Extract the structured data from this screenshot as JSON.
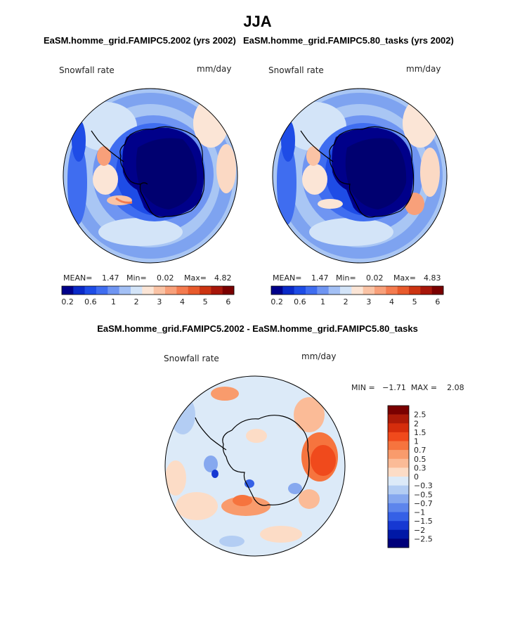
{
  "figure": {
    "season": "JJA",
    "panel1_title": "EaSM.homme_grid.FAMIPC5.2002 (yrs 2002)",
    "panel2_title": "EaSM.homme_grid.FAMIPC5.80_tasks (yrs 2002)",
    "diff_title": "EaSM.homme_grid.FAMIPC5.2002 - EaSM.homme_grid.FAMIPC5.80_tasks"
  },
  "chart_data": [
    {
      "type": "heatmap",
      "projection": "south polar stereographic",
      "variable_label": "Snowfall rate",
      "units": "mm/day",
      "stats": {
        "mean_label": "MEAN=",
        "mean": "1.47",
        "min_label": "Min=",
        "min": "0.02",
        "max_label": "Max=",
        "max": "4.82"
      },
      "colorbar_ticks": [
        "0.2",
        "0.6",
        "1",
        "2",
        "3",
        "4",
        "5",
        "6"
      ],
      "colorbar_colors": [
        "#00008a",
        "#0a2ac8",
        "#1e4ce6",
        "#3f6df0",
        "#6f95f2",
        "#a3c0f5",
        "#d3e4f8",
        "#fbe5d6",
        "#fac3a5",
        "#f8a07a",
        "#f47b4f",
        "#e85a2c",
        "#cc3412",
        "#a7160a",
        "#7a0000"
      ]
    },
    {
      "type": "heatmap",
      "projection": "south polar stereographic",
      "variable_label": "Snowfall rate",
      "units": "mm/day",
      "stats": {
        "mean_label": "MEAN=",
        "mean": "1.47",
        "min_label": "Min=",
        "min": "0.02",
        "max_label": "Max=",
        "max": "4.83"
      },
      "colorbar_ticks": [
        "0.2",
        "0.6",
        "1",
        "2",
        "3",
        "4",
        "5",
        "6"
      ],
      "colorbar_colors": [
        "#00008a",
        "#0a2ac8",
        "#1e4ce6",
        "#3f6df0",
        "#6f95f2",
        "#a3c0f5",
        "#d3e4f8",
        "#fbe5d6",
        "#fac3a5",
        "#f8a07a",
        "#f47b4f",
        "#e85a2c",
        "#cc3412",
        "#a7160a",
        "#7a0000"
      ]
    },
    {
      "type": "heatmap",
      "projection": "south polar stereographic",
      "variable_label": "Snowfall rate",
      "units": "mm/day",
      "stats": {
        "text": "MIN =   −1.71  MAX =    2.08"
      },
      "colorbar_ticks": [
        "2.5",
        "2",
        "1.5",
        "1",
        "0.7",
        "0.5",
        "0.3",
        "0",
        "−0.3",
        "−0.5",
        "−0.7",
        "−1",
        "−1.5",
        "−2",
        "−2.5"
      ],
      "colorbar_colors": [
        "#7a0000",
        "#ad1a08",
        "#d52d0c",
        "#f04a1c",
        "#f6743e",
        "#f99b6c",
        "#fbbb97",
        "#fcdcc6",
        "#dceaf8",
        "#b3cdf3",
        "#86a8ef",
        "#5d85ec",
        "#3560e6",
        "#1638d2",
        "#0018a6",
        "#00007a"
      ]
    }
  ]
}
